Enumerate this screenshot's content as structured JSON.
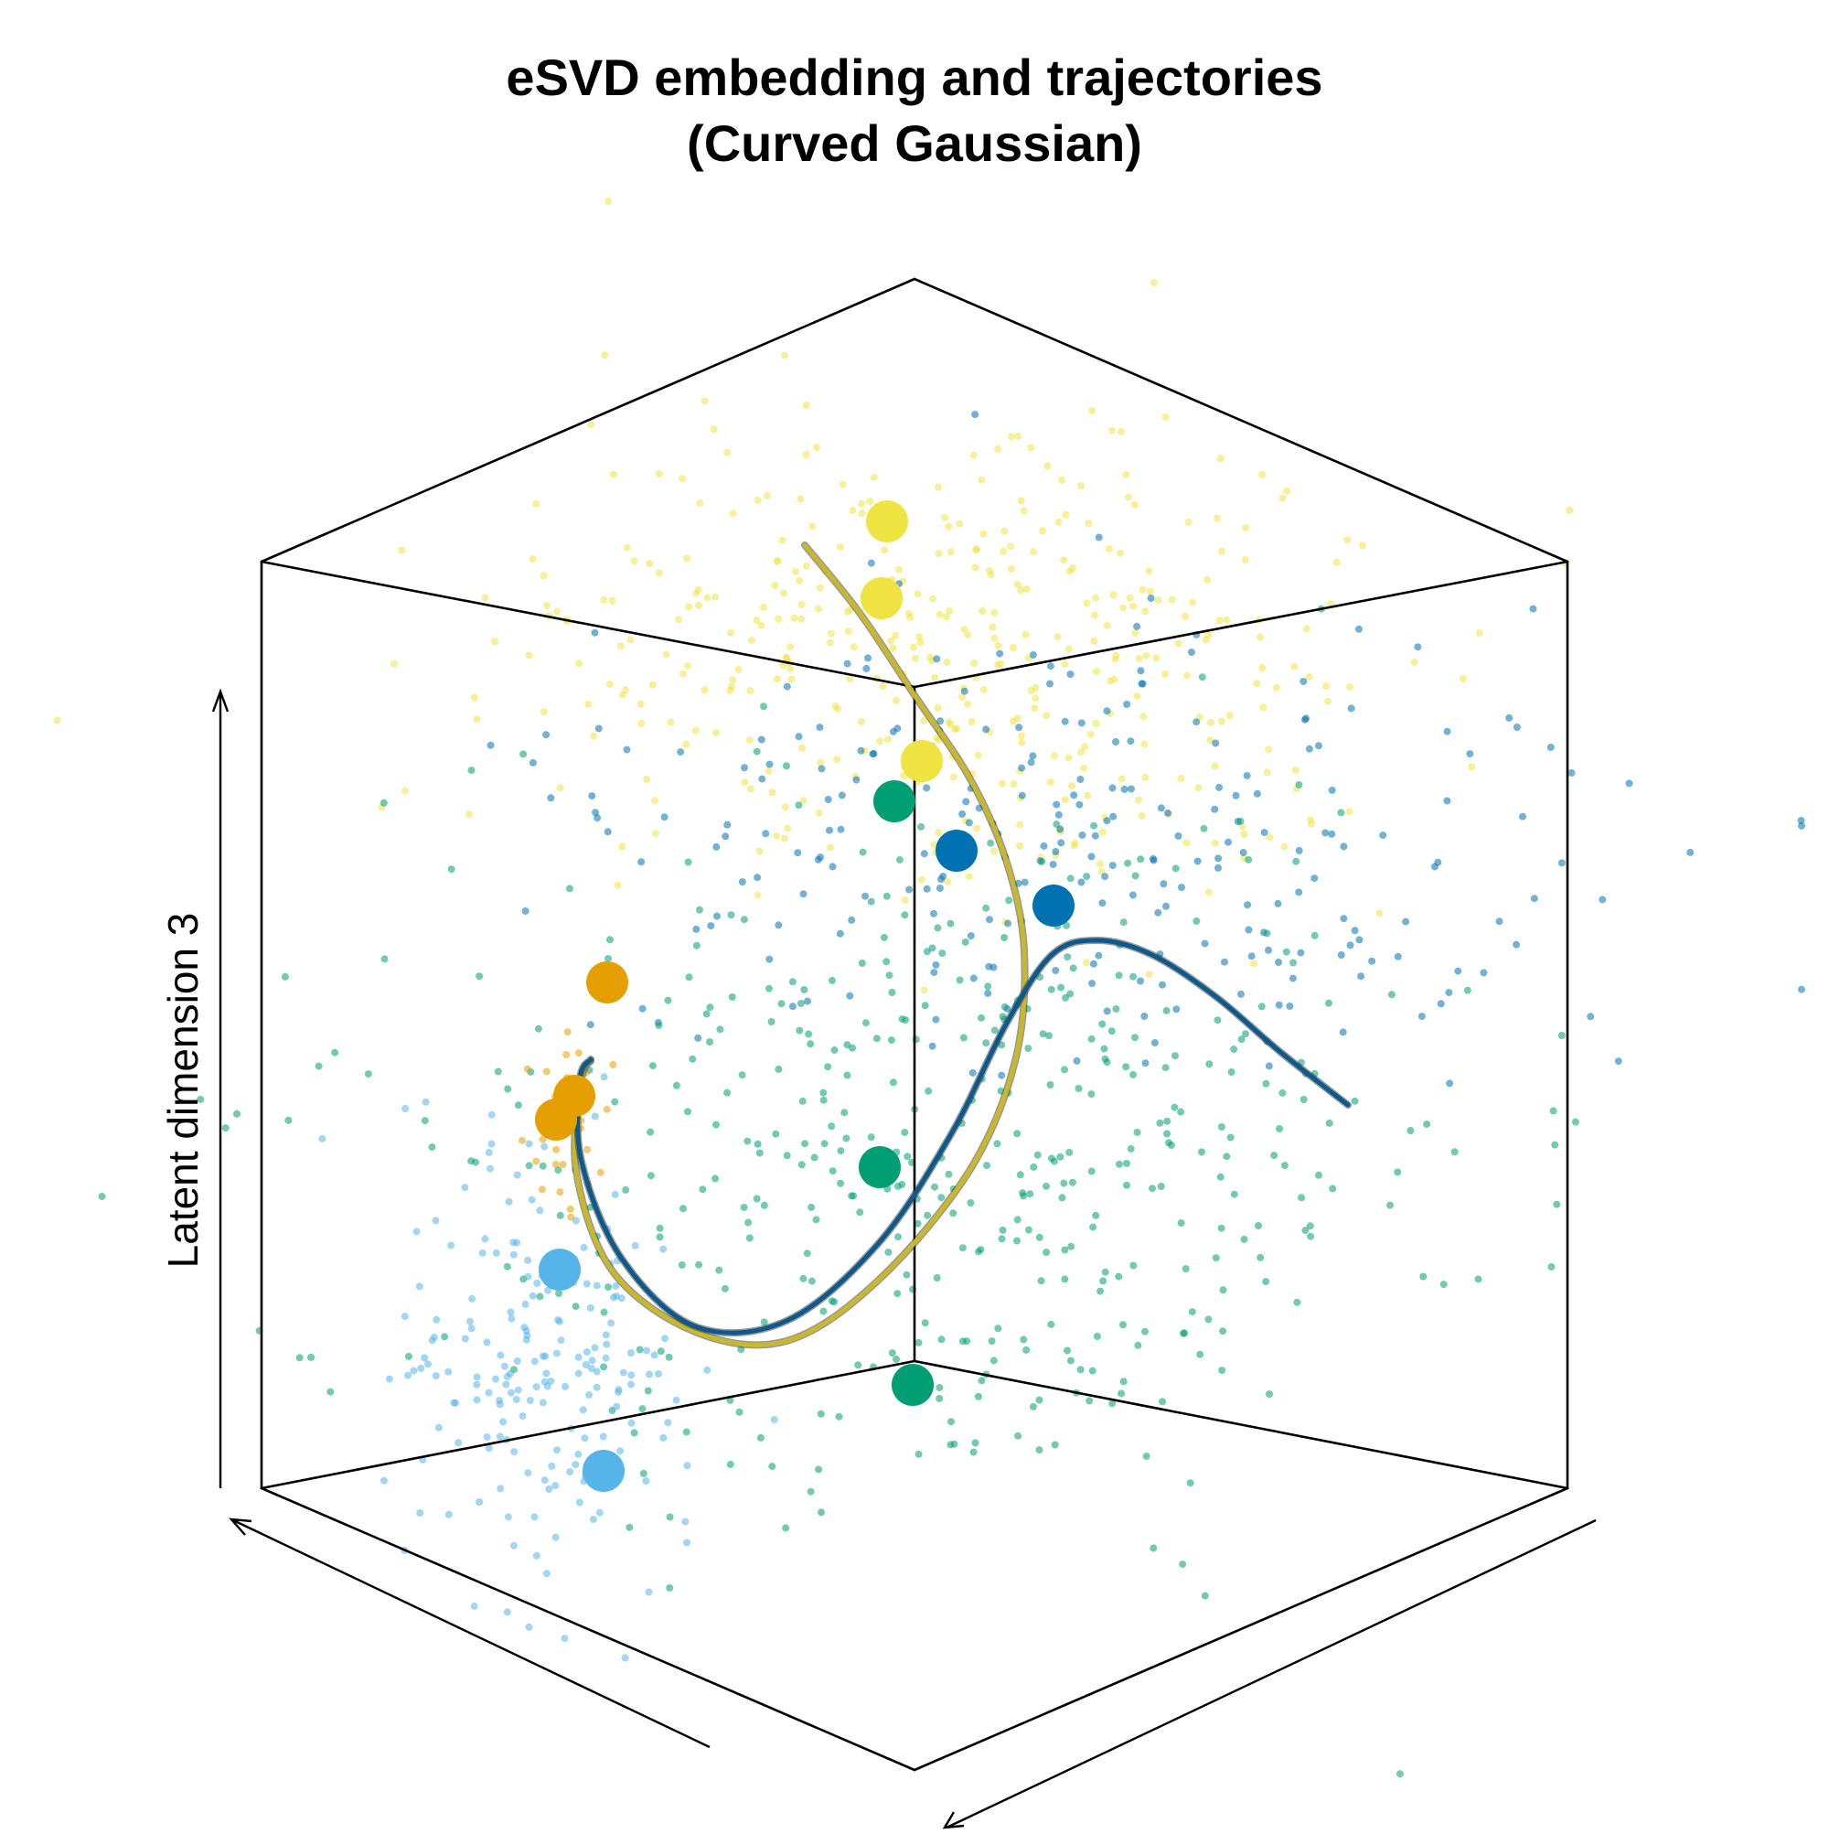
{
  "chart_data": {
    "type": "scatter",
    "title_line1": "eSVD embedding and trajectories",
    "title_line2": "(Curved Gaussian)",
    "zlabel": "Latent dimension 3",
    "grid": false,
    "legend": "none",
    "colors": {
      "yellow": "#F0E442",
      "sky_blue": "#56B4E9",
      "green": "#009E73",
      "dark_blue": "#0072B2",
      "orange": "#E69F00",
      "curve_blue": "#0C5A8C",
      "curve_yellow": "#C8B82A"
    },
    "point_clouds": [
      {
        "color": "yellow",
        "count": 420,
        "center": [
          0.52,
          0.36
        ],
        "spread": [
          0.22,
          0.13
        ]
      },
      {
        "color": "dark_blue",
        "count": 260,
        "center": [
          0.6,
          0.46
        ],
        "spread": [
          0.24,
          0.11
        ]
      },
      {
        "color": "green",
        "count": 470,
        "center": [
          0.52,
          0.63
        ],
        "spread": [
          0.27,
          0.18
        ]
      },
      {
        "color": "sky_blue",
        "count": 200,
        "center": [
          0.3,
          0.75
        ],
        "spread": [
          0.07,
          0.11
        ]
      },
      {
        "color": "orange",
        "count": 40,
        "center": [
          0.31,
          0.61
        ],
        "spread": [
          0.02,
          0.04
        ]
      }
    ],
    "cluster_centers": [
      {
        "color": "yellow",
        "x": 0.485,
        "y": 0.285
      },
      {
        "color": "yellow",
        "x": 0.482,
        "y": 0.327
      },
      {
        "color": "yellow",
        "x": 0.504,
        "y": 0.416
      },
      {
        "color": "green",
        "x": 0.489,
        "y": 0.438
      },
      {
        "color": "dark_blue",
        "x": 0.523,
        "y": 0.465
      },
      {
        "color": "dark_blue",
        "x": 0.576,
        "y": 0.495
      },
      {
        "color": "orange",
        "x": 0.332,
        "y": 0.537
      },
      {
        "color": "orange",
        "x": 0.314,
        "y": 0.599
      },
      {
        "color": "orange",
        "x": 0.304,
        "y": 0.612
      },
      {
        "color": "sky_blue",
        "x": 0.306,
        "y": 0.694
      },
      {
        "color": "green",
        "x": 0.481,
        "y": 0.638
      },
      {
        "color": "green",
        "x": 0.499,
        "y": 0.757
      },
      {
        "color": "sky_blue",
        "x": 0.33,
        "y": 0.804
      }
    ],
    "trajectories": [
      {
        "color": "curve_yellow",
        "points": [
          [
            0.44,
            0.298
          ],
          [
            0.47,
            0.335
          ],
          [
            0.5,
            0.38
          ],
          [
            0.53,
            0.425
          ],
          [
            0.55,
            0.47
          ],
          [
            0.56,
            0.52
          ],
          [
            0.555,
            0.58
          ],
          [
            0.53,
            0.64
          ],
          [
            0.48,
            0.7
          ],
          [
            0.43,
            0.733
          ],
          [
            0.38,
            0.728
          ],
          [
            0.335,
            0.695
          ],
          [
            0.315,
            0.64
          ],
          [
            0.318,
            0.59
          ],
          [
            0.323,
            0.58
          ]
        ]
      },
      {
        "color": "curve_blue",
        "points": [
          [
            0.737,
            0.604
          ],
          [
            0.7,
            0.575
          ],
          [
            0.665,
            0.545
          ],
          [
            0.63,
            0.522
          ],
          [
            0.6,
            0.514
          ],
          [
            0.575,
            0.522
          ],
          [
            0.55,
            0.56
          ],
          [
            0.52,
            0.62
          ],
          [
            0.48,
            0.68
          ],
          [
            0.43,
            0.722
          ],
          [
            0.38,
            0.725
          ],
          [
            0.34,
            0.688
          ],
          [
            0.318,
            0.635
          ],
          [
            0.317,
            0.59
          ],
          [
            0.323,
            0.579
          ]
        ]
      }
    ]
  }
}
